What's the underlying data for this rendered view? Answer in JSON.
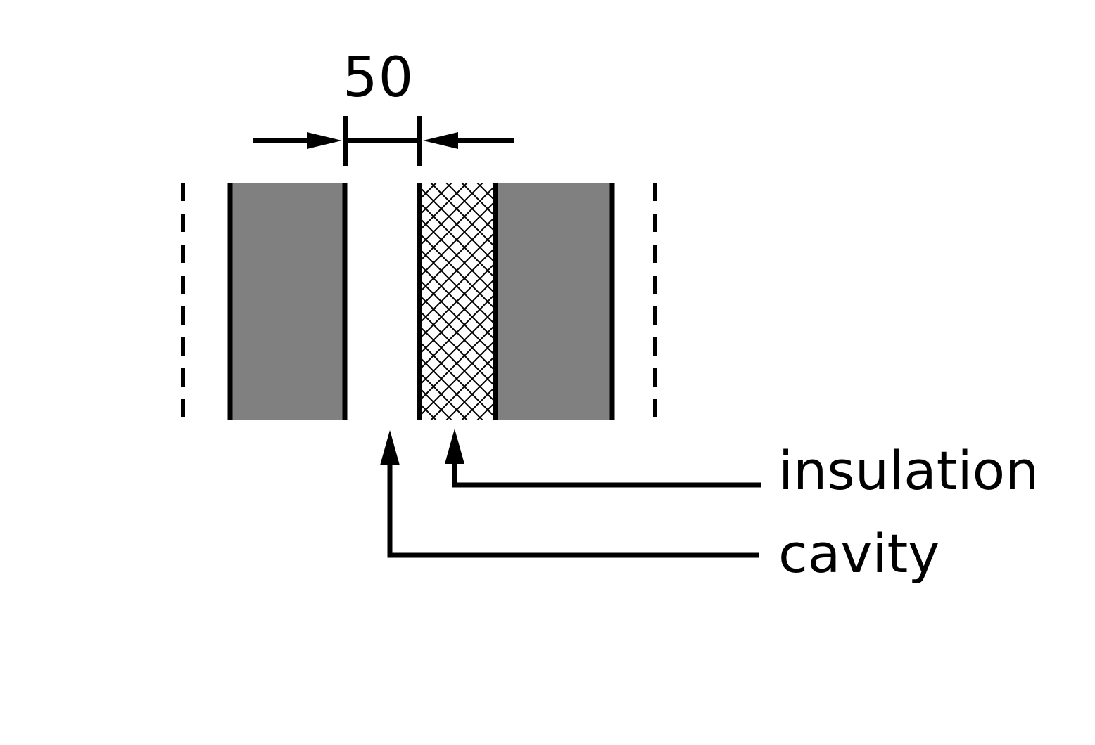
{
  "dimension": {
    "value": "50"
  },
  "labels": {
    "insulation": "insulation",
    "cavity": "cavity"
  },
  "colors": {
    "wall_fill": "#808080",
    "line": "#000000",
    "background": "#ffffff"
  }
}
